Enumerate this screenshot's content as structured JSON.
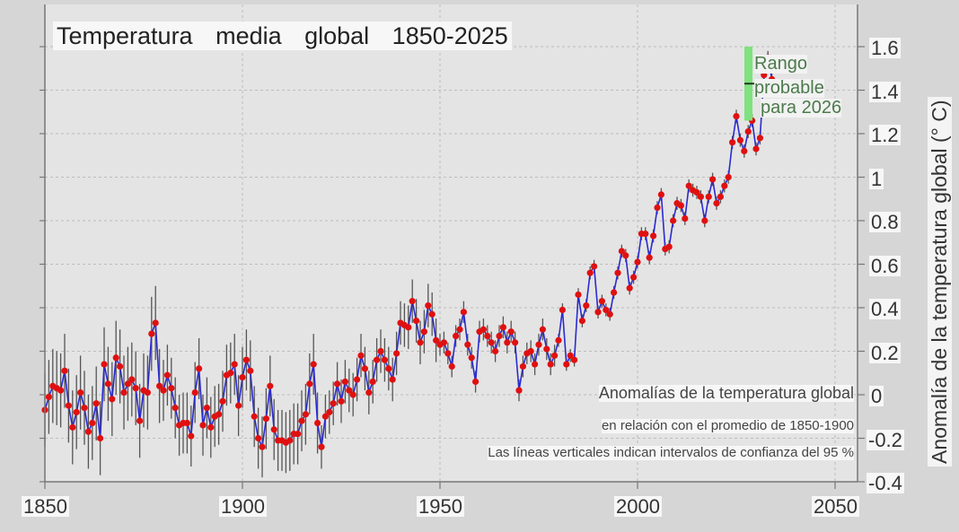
{
  "chart_data": {
    "type": "line",
    "title": "Temperatura media global 1850-2025",
    "xlabel": "",
    "ylabel": "Anomalía de la temperatura global (° C)",
    "xlim": [
      1850,
      2055
    ],
    "ylim": [
      -0.4,
      1.7
    ],
    "x_ticks": [
      "1850",
      "1900",
      "1950",
      "2000",
      "2050"
    ],
    "y_ticks": [
      "1.6",
      "1.4",
      "1.2",
      "1",
      "0.8",
      "0.6",
      "0.4",
      "0.2",
      "0",
      "-0.2",
      "-0.4"
    ],
    "grid": true,
    "series": [
      {
        "name": "Anomalías de la temperatura global",
        "x_start": 1850,
        "values": [
          -0.07,
          -0.01,
          0.04,
          0.03,
          0.02,
          0.11,
          -0.05,
          -0.15,
          -0.08,
          0.01,
          -0.06,
          -0.17,
          -0.13,
          -0.04,
          -0.2,
          0.14,
          0.05,
          -0.02,
          0.17,
          0.13,
          0.01,
          0.05,
          0.07,
          0.03,
          -0.12,
          0.02,
          0.01,
          0.28,
          0.33,
          0.04,
          0.02,
          0.09,
          0.03,
          -0.06,
          -0.14,
          -0.13,
          -0.13,
          -0.19,
          0.01,
          0.12,
          -0.14,
          -0.06,
          -0.15,
          -0.1,
          -0.09,
          -0.03,
          0.09,
          0.1,
          0.14,
          -0.05,
          0.08,
          0.16,
          0.11,
          -0.1,
          -0.2,
          -0.24,
          -0.11,
          0.04,
          -0.16,
          -0.21,
          -0.21,
          -0.22,
          -0.21,
          -0.18,
          -0.18,
          -0.12,
          -0.09,
          0.05,
          0.14,
          -0.13,
          -0.24,
          -0.1,
          -0.08,
          -0.04,
          0.05,
          -0.03,
          0.06,
          0.02,
          0.0,
          0.07,
          0.18,
          0.12,
          0.01,
          0.06,
          0.16,
          0.2,
          0.16,
          0.12,
          0.07,
          0.19,
          0.33,
          0.32,
          0.31,
          0.43,
          0.34,
          0.24,
          0.29,
          0.41,
          0.37,
          0.25,
          0.23,
          0.24,
          0.19,
          0.13,
          0.27,
          0.3,
          0.38,
          0.23,
          0.17,
          0.06,
          0.29,
          0.3,
          0.27,
          0.24,
          0.2,
          0.27,
          0.31,
          0.24,
          0.29,
          0.24,
          0.02,
          0.13,
          0.19,
          0.2,
          0.14,
          0.23,
          0.3,
          0.21,
          0.14,
          0.18,
          0.25,
          0.39,
          0.14,
          0.18,
          0.16,
          0.46,
          0.34,
          0.41,
          0.56,
          0.59,
          0.38,
          0.43,
          0.39,
          0.37,
          0.47,
          0.56,
          0.66,
          0.64,
          0.49,
          0.54,
          0.61,
          0.74,
          0.74,
          0.63,
          0.73,
          0.86,
          0.92,
          0.67,
          0.68,
          0.8,
          0.88,
          0.87,
          0.81,
          0.96,
          0.94,
          0.93,
          0.91,
          0.8,
          0.91,
          0.99,
          0.88,
          0.91,
          0.96,
          1.0,
          1.16,
          1.28,
          1.17,
          1.12,
          1.21,
          1.26,
          1.13,
          1.18,
          1.47,
          1.55,
          1.45
        ],
        "ci_halfwidths_early": 0.17,
        "color": "#2a2ad0",
        "marker_color": "#e01010"
      }
    ],
    "range_2026": {
      "low": 1.26,
      "high": 1.6,
      "central": 1.43,
      "color": "#7ee27e",
      "text": [
        "Rango",
        "probable",
        "para 2026"
      ]
    },
    "annotations": [
      "Anomalías de la temperatura global",
      "en relación con el promedio de 1850-1900",
      "Las líneas verticales indican intervalos de confianza del 95 %"
    ],
    "legend": "bottom-right"
  }
}
